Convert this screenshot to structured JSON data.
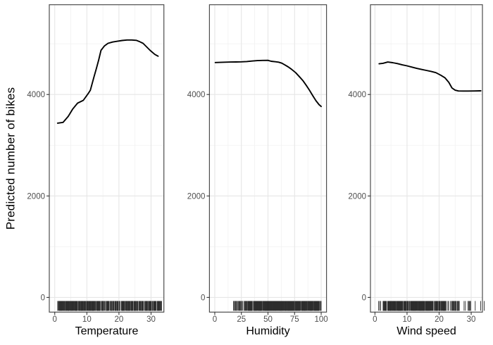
{
  "figure": {
    "title": "",
    "y_axis_title": "Predicted number of bikes",
    "y_ticks": {
      "values": [
        0,
        2000,
        4000
      ],
      "labels": [
        "0",
        "2000",
        "4000"
      ]
    },
    "y_minor": [
      1000,
      3000,
      5000
    ],
    "ylim": [
      -290,
      5770
    ],
    "grid": "on",
    "legend": "none",
    "colors": {
      "line": "#000000",
      "grid_major": "#E6E6E6",
      "grid_minor": "#F1F1F1",
      "border": "#4D4D4D",
      "tick": "#333333",
      "axis_text": "#4D4D4D",
      "title_text": "#000000",
      "background": "#FFFFFF",
      "rug": "#000000"
    }
  },
  "chart_data": [
    {
      "type": "line",
      "id": "temperature",
      "xlabel": "Temperature",
      "ylabel": "Predicted number of bikes",
      "x_ticks": {
        "values": [
          0,
          10,
          20,
          30
        ],
        "labels": [
          "0",
          "10",
          "20",
          "30"
        ]
      },
      "x_minor": [
        5,
        15,
        25
      ],
      "xlim": [
        -1.7,
        34.0
      ],
      "line": {
        "x": [
          0.9,
          2.6,
          4.2,
          5.6,
          7.1,
          8.9,
          10.4,
          11.1,
          12.2,
          13.0,
          13.7,
          14.4,
          15.5,
          16.6,
          18.0,
          19.5,
          21.0,
          22.5,
          24.0,
          25.4,
          26.5,
          27.5,
          28.6,
          29.7,
          31.2,
          32.2
        ],
        "y": [
          3435,
          3450,
          3570,
          3715,
          3830,
          3885,
          4015,
          4085,
          4340,
          4520,
          4685,
          4870,
          4960,
          5010,
          5035,
          5050,
          5065,
          5075,
          5075,
          5068,
          5040,
          5010,
          4940,
          4870,
          4790,
          4755
        ]
      },
      "rug_segments": [
        {
          "from": 0.7,
          "to": 12,
          "count": 150
        },
        {
          "from": 12,
          "to": 30,
          "count": 210
        },
        {
          "from": 30,
          "to": 33.4,
          "count": 35
        }
      ]
    },
    {
      "type": "line",
      "id": "humidity",
      "xlabel": "Humidity",
      "ylabel": "Predicted number of bikes",
      "x_ticks": {
        "values": [
          0,
          25,
          50,
          75,
          100
        ],
        "labels": [
          "0",
          "25",
          "50",
          "75",
          "100"
        ]
      },
      "x_minor": [
        12.5,
        37.5,
        62.5,
        87.5
      ],
      "xlim": [
        -5,
        105
      ],
      "line": {
        "x": [
          0.5,
          5,
          10,
          15,
          20,
          25,
          30,
          35,
          40,
          45,
          50,
          53,
          57,
          60,
          63,
          66,
          69,
          72,
          76,
          80,
          83,
          86,
          89,
          92,
          95,
          98,
          100
        ],
        "y": [
          4630,
          4633,
          4637,
          4640,
          4642,
          4645,
          4650,
          4660,
          4668,
          4672,
          4674,
          4656,
          4646,
          4638,
          4618,
          4582,
          4545,
          4500,
          4430,
          4340,
          4268,
          4180,
          4085,
          3980,
          3880,
          3800,
          3765
        ]
      },
      "rug_segments": [
        {
          "from": 17.5,
          "to": 19.5,
          "count": 3
        },
        {
          "from": 19.5,
          "to": 28,
          "count": 16
        },
        {
          "from": 28,
          "to": 40,
          "count": 60
        },
        {
          "from": 40,
          "to": 75,
          "count": 280
        },
        {
          "from": 75,
          "to": 92,
          "count": 100
        },
        {
          "from": 92,
          "to": 100,
          "count": 40
        }
      ]
    },
    {
      "type": "line",
      "id": "wind-speed",
      "xlabel": "Wind speed",
      "ylabel": "Predicted number of bikes",
      "x_ticks": {
        "values": [
          0,
          10,
          20,
          30
        ],
        "labels": [
          "0",
          "10",
          "20",
          "30"
        ]
      },
      "x_minor": [
        5,
        15,
        25
      ],
      "xlim": [
        -1.4,
        33.5
      ],
      "line": {
        "x": [
          1.3,
          2.5,
          4.0,
          5.5,
          7,
          8.5,
          10,
          11.5,
          13,
          14.5,
          16,
          17.5,
          19,
          20.5,
          21.8,
          23,
          24,
          25,
          26,
          27.5,
          29,
          31,
          33
        ],
        "y": [
          4605,
          4615,
          4640,
          4628,
          4610,
          4585,
          4565,
          4540,
          4515,
          4495,
          4475,
          4455,
          4430,
          4380,
          4330,
          4240,
          4130,
          4085,
          4070,
          4068,
          4068,
          4070,
          4073
        ]
      },
      "rug_segments": [
        {
          "from": 1,
          "to": 3,
          "count": 10
        },
        {
          "from": 3,
          "to": 17,
          "count": 260
        },
        {
          "from": 17,
          "to": 22,
          "count": 70
        },
        {
          "from": 22,
          "to": 26.5,
          "count": 30
        },
        {
          "from": 26.5,
          "to": 30.5,
          "count": 7
        },
        {
          "from": 30.5,
          "to": 33,
          "count": 2
        },
        {
          "from": 33.8,
          "to": 34.2,
          "count": 1
        }
      ]
    }
  ]
}
